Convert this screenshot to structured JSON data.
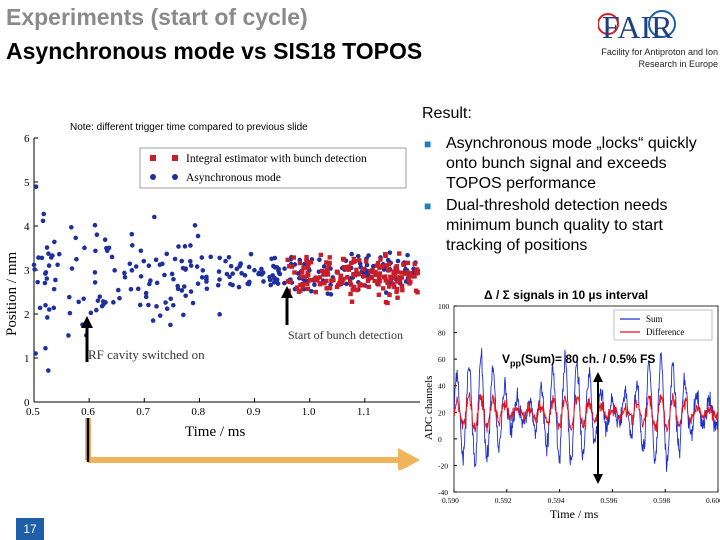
{
  "slide": {
    "title_line1": "Experiments (start of cycle)",
    "title_line2": "Asynchronous mode vs SIS18 TOPOS",
    "logo_text": "FAIR",
    "logo_subtitle": "Facility for Antiproton and Ion Research in Europe",
    "page_number": "17"
  },
  "left_plot": {
    "note": "Note: different trigger time compared to previous slide",
    "legend": [
      "Integral estimator with bunch detection",
      "Asynchronous mode"
    ],
    "xlabel": "Time / ms",
    "ylabel": "Position / mm",
    "annotations": {
      "rf": "RF cavity switched on",
      "start": "Start of bunch detection"
    },
    "colors": {
      "integral": "#c81e2a",
      "async": "#1f2fa0"
    }
  },
  "result": {
    "heading": "Result:",
    "bullets": [
      "Asynchronous mode „locks“ quickly onto bunch signal and exceeds TOPOS performance",
      "Dual-threshold detection needs minimum bunch quality to start tracking of positions"
    ]
  },
  "right_plot": {
    "heading": "Δ / Σ signals in 10 µs interval",
    "vpp_prefix": "V",
    "vpp_sub": "pp",
    "vpp_rest": "(Sum)= 80 ch. / 0.5% FS",
    "legend": [
      "Sum",
      "Difference"
    ],
    "xlabel": "Time / ms",
    "ylabel": "ADC channels"
  },
  "chart_data": [
    {
      "type": "scatter",
      "xlabel": "Time / ms",
      "ylabel": "Position / mm",
      "xlim": [
        0.5,
        1.2
      ],
      "ylim": [
        0,
        6
      ],
      "x_ticks": [
        0.5,
        0.6,
        0.7,
        0.8,
        0.9,
        1.0,
        1.1
      ],
      "y_ticks": [
        0,
        1,
        2,
        3,
        4,
        5,
        6
      ],
      "series": [
        {
          "name": "Integral estimator with bunch detection",
          "color": "#c81e2a",
          "x_range": [
            0.96,
            1.2
          ],
          "y_mean": 2.85,
          "y_spread": 0.45
        },
        {
          "name": "Asynchronous mode",
          "color": "#1f2fa0",
          "x_range": [
            0.5,
            1.2
          ],
          "y_mean": 2.9,
          "y_spread_start": 1.6,
          "y_spread_end": 0.35
        }
      ]
    },
    {
      "type": "line",
      "xlabel": "Time / ms",
      "ylabel": "ADC channels",
      "xlim": [
        0.59,
        0.6
      ],
      "ylim": [
        -40,
        100
      ],
      "x_ticks": [
        0.59,
        0.592,
        0.594,
        0.596,
        0.598,
        0.6
      ],
      "y_ticks": [
        -40,
        -20,
        0,
        20,
        40,
        60,
        80,
        100
      ],
      "series": [
        {
          "name": "Sum",
          "color": "#1f2fd0",
          "mean": 20,
          "amplitude": 40
        },
        {
          "name": "Difference",
          "color": "#e0141e",
          "mean": 20,
          "amplitude": 12
        }
      ]
    }
  ]
}
